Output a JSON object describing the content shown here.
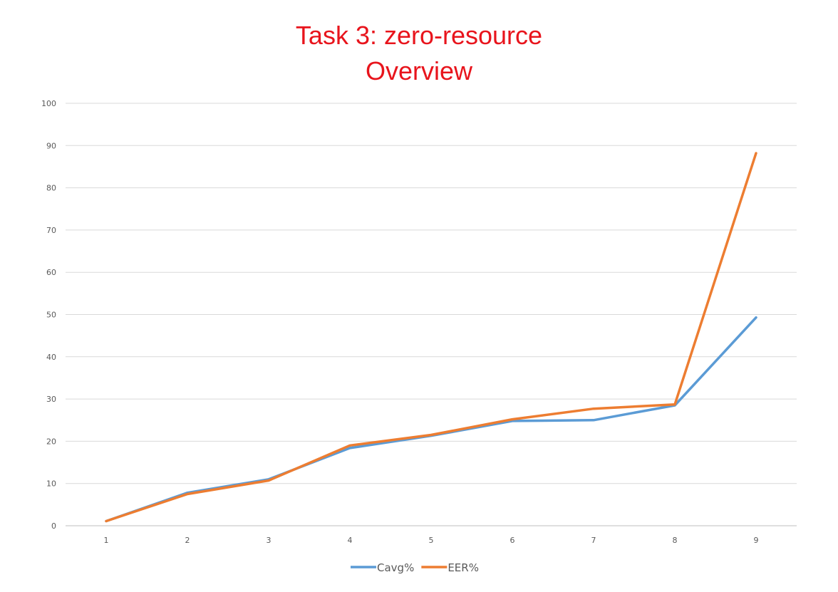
{
  "chart_data": {
    "type": "line",
    "title": [
      "Task 3: zero-resource",
      "Overview"
    ],
    "xlabel": "",
    "ylabel": "",
    "categories": [
      "1",
      "2",
      "3",
      "4",
      "5",
      "6",
      "7",
      "8",
      "9"
    ],
    "ylim": [
      0,
      100
    ],
    "yticks": [
      "0",
      "10",
      "20",
      "30",
      "40",
      "50",
      "60",
      "70",
      "80",
      "90",
      "100"
    ],
    "grid": true,
    "legend": "bottom",
    "series": [
      {
        "name": "Cavg%",
        "color": "#5b9bd5",
        "values": [
          1.1,
          7.8,
          11.0,
          18.4,
          21.3,
          24.8,
          25.0,
          28.5,
          49.3
        ]
      },
      {
        "name": "EER%",
        "color": "#ed7d31",
        "values": [
          1.1,
          7.5,
          10.7,
          19.0,
          21.5,
          25.2,
          27.7,
          28.7,
          88.2
        ]
      }
    ]
  }
}
